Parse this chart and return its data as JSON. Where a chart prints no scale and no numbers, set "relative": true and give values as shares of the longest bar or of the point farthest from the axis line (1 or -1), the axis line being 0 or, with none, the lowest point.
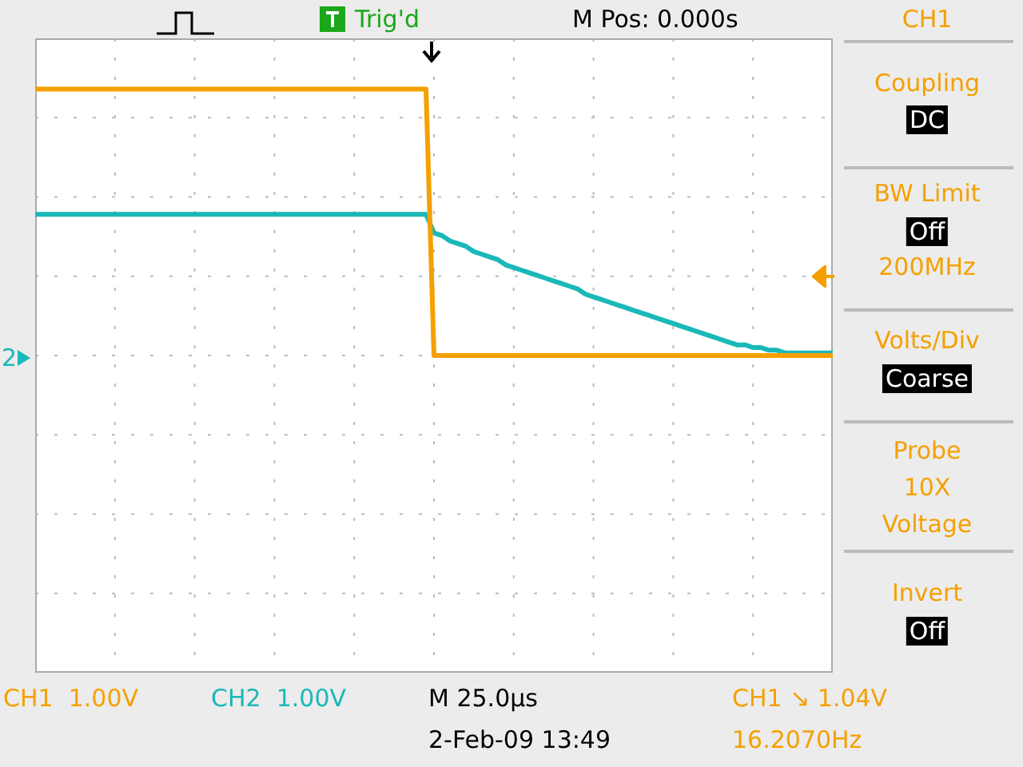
{
  "chart_data": {
    "type": "line",
    "relative": true,
    "grid": true,
    "marker": "none",
    "categories": [
      null,
      null,
      null,
      null,
      null,
      null,
      null,
      null,
      null,
      null,
      null,
      null,
      null,
      null,
      null,
      null,
      null,
      null,
      null,
      null,
      null,
      null,
      null,
      null,
      null,
      null,
      null,
      null,
      null,
      null,
      null,
      null,
      null,
      null,
      null,
      null,
      null,
      null,
      null,
      null,
      null,
      null,
      null,
      null,
      null,
      null,
      null,
      null,
      null,
      null,
      null,
      null,
      null,
      null,
      null,
      null,
      null,
      null,
      null,
      null,
      null,
      null,
      null,
      null,
      null,
      null,
      null,
      null,
      null,
      null,
      null,
      null,
      null,
      null,
      null,
      null,
      null,
      null,
      null,
      null,
      null,
      null,
      null,
      null,
      null,
      null,
      null,
      null,
      null,
      null,
      null,
      null,
      null,
      null,
      null,
      null,
      null,
      null,
      null,
      null,
      null
    ],
    "series": [
      {
        "color": "#f5a000",
        "values": [
          1,
          1,
          1,
          1,
          1,
          1,
          1,
          1,
          1,
          1,
          1,
          1,
          1,
          1,
          1,
          1,
          1,
          1,
          1,
          1,
          1,
          1,
          1,
          1,
          1,
          1,
          1,
          1,
          1,
          1,
          1,
          1,
          1,
          1,
          1,
          1,
          1,
          1,
          1,
          1,
          1,
          1,
          1,
          1,
          1,
          1,
          1,
          1,
          1,
          1,
          0,
          0,
          0,
          0,
          0,
          0,
          0,
          0,
          0,
          0,
          0,
          0,
          0,
          0,
          0,
          0,
          0,
          0,
          0,
          0,
          0,
          0,
          0,
          0,
          0,
          0,
          0,
          0,
          0,
          0,
          0,
          0,
          0,
          0,
          0,
          0,
          0,
          0,
          0,
          0,
          0,
          0,
          0,
          0,
          0,
          0,
          0,
          0,
          0,
          0,
          0
        ]
      },
      {
        "color": "#1ab8b8",
        "values": [
          0.53,
          0.53,
          0.53,
          0.53,
          0.53,
          0.53,
          0.53,
          0.53,
          0.53,
          0.53,
          0.53,
          0.53,
          0.53,
          0.53,
          0.53,
          0.53,
          0.53,
          0.53,
          0.53,
          0.53,
          0.53,
          0.53,
          0.53,
          0.53,
          0.53,
          0.53,
          0.53,
          0.53,
          0.53,
          0.53,
          0.53,
          0.53,
          0.53,
          0.53,
          0.53,
          0.53,
          0.53,
          0.53,
          0.53,
          0.53,
          0.53,
          0.53,
          0.53,
          0.53,
          0.53,
          0.53,
          0.53,
          0.53,
          0.53,
          0.53,
          0.46,
          0.45,
          0.43,
          0.42,
          0.41,
          0.39,
          0.38,
          0.37,
          0.36,
          0.34,
          0.33,
          0.32,
          0.31,
          0.3,
          0.29,
          0.28,
          0.27,
          0.26,
          0.25,
          0.23,
          0.22,
          0.21,
          0.2,
          0.19,
          0.18,
          0.17,
          0.16,
          0.15,
          0.14,
          0.13,
          0.12,
          0.11,
          0.1,
          0.09,
          0.08,
          0.07,
          0.06,
          0.05,
          0.04,
          0.04,
          0.03,
          0.03,
          0.02,
          0.02,
          0.01,
          0.01,
          0.01,
          0.01,
          0.01,
          0.01,
          0.01
        ]
      }
    ],
    "annotations": [
      "Trig'd",
      "M Pos: 0.000s",
      "CH1",
      "Coupling",
      "DC",
      "BW Limit",
      "Off",
      "200MHz",
      "Volts/Div",
      "Coarse",
      "Probe",
      "10X",
      "Voltage",
      "Invert",
      "Off",
      "CH1  1.00V",
      "CH2  1.00V",
      "M 25.0µs",
      "CH1 ↘ 1.04V",
      "2-Feb-09 13:49",
      "16.2070Hz",
      "2"
    ]
  }
}
